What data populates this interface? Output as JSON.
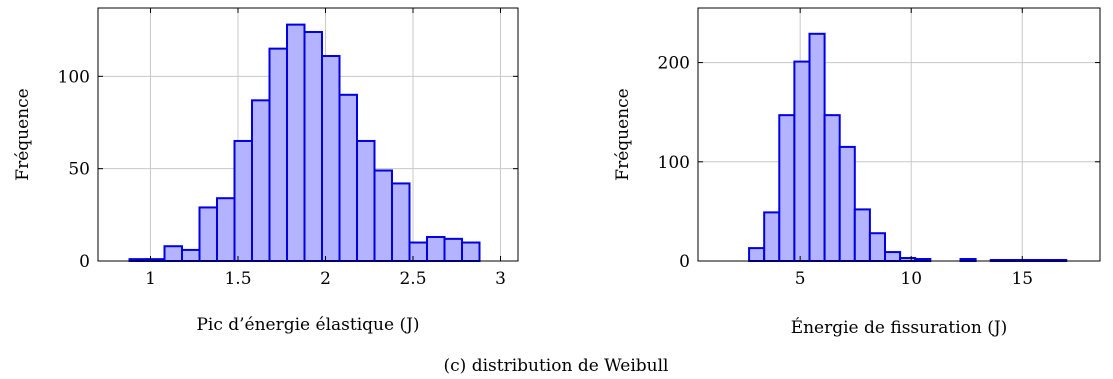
{
  "caption": "(c) distribution de Weibull",
  "colors": {
    "bar_fill": "#b3b3ff",
    "bar_stroke": "#0000e0",
    "grid": "#c8c8c8"
  },
  "chart_data": [
    {
      "type": "bar",
      "xlabel": "Pic d’énergie élastique (J)",
      "ylabel": "Fréquence",
      "xlim": [
        0.7,
        3.1
      ],
      "ylim": [
        0,
        137
      ],
      "xticks": [
        1,
        1.5,
        2,
        2.5,
        3
      ],
      "xtick_labels": [
        "1",
        "1.5",
        "2",
        "2.5",
        "3"
      ],
      "yticks": [
        0,
        50,
        100
      ],
      "ytick_labels": [
        "0",
        "50",
        "100"
      ],
      "grid": true,
      "bin_edges": [
        0.88,
        0.98,
        1.08,
        1.18,
        1.28,
        1.38,
        1.48,
        1.58,
        1.68,
        1.78,
        1.88,
        1.98,
        2.08,
        2.18,
        2.28,
        2.38,
        2.48,
        2.58,
        2.68,
        2.78,
        2.88
      ],
      "values": [
        1,
        1,
        8,
        6,
        29,
        34,
        65,
        87,
        115,
        128,
        124,
        111,
        90,
        65,
        49,
        42,
        10,
        13,
        12,
        10
      ]
    },
    {
      "type": "bar",
      "xlabel": "Énergie de fissuration (J)",
      "ylabel": "Fréquence",
      "xlim": [
        0.4,
        18.5
      ],
      "ylim": [
        0,
        255
      ],
      "xticks": [
        5,
        10,
        15
      ],
      "xtick_labels": [
        "5",
        "10",
        "15"
      ],
      "yticks": [
        0,
        100,
        200
      ],
      "ytick_labels": [
        "0",
        "100",
        "200"
      ],
      "grid": true,
      "bin_edges": [
        2.7,
        3.38,
        4.06,
        4.74,
        5.42,
        6.1,
        6.78,
        7.46,
        8.14,
        8.82,
        9.5,
        10.18,
        10.86,
        11.54,
        12.22,
        12.9,
        13.58,
        14.26,
        14.94,
        15.62,
        16.3,
        16.98
      ],
      "values": [
        13,
        49,
        147,
        201,
        229,
        147,
        115,
        52,
        28,
        9,
        3,
        2,
        0,
        0,
        2,
        0,
        1,
        1,
        1,
        1,
        1
      ]
    }
  ]
}
